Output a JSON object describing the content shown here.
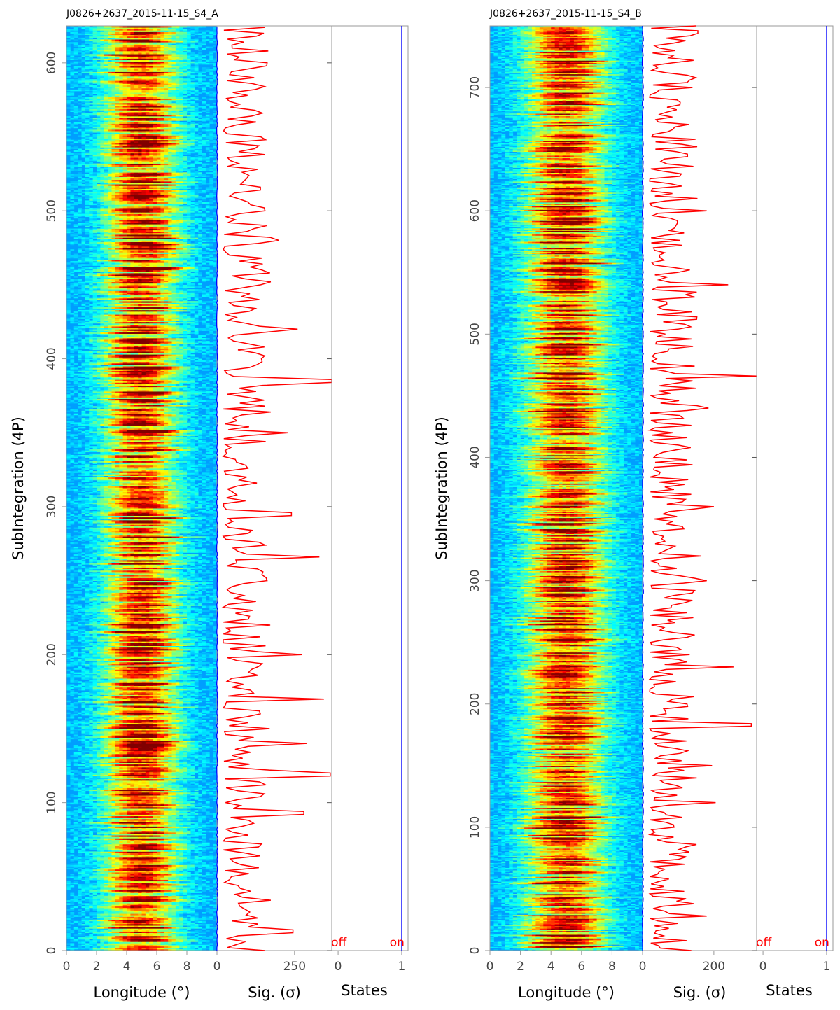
{
  "chart_data": [
    {
      "type": "heatmap",
      "title": "J0826+2637_2015-11-15_S4_A",
      "ylabel": "SubIntegration (4P)",
      "n_subints": 625,
      "ylim": [
        0,
        625
      ],
      "yticks": [
        0,
        100,
        200,
        300,
        400,
        500,
        600
      ],
      "panels": {
        "heatmap": {
          "xlabel": "Longitude (°)",
          "xlim": [
            0,
            10
          ],
          "xticks": [
            0,
            2,
            4,
            6,
            8
          ],
          "colormap": "jet",
          "pulse_center_deg": 5.0,
          "pulse_width_deg": 1.6
        },
        "significance": {
          "xlabel": "Sig. (σ)",
          "xlim": [
            0,
            370
          ],
          "xticks": [
            0,
            250
          ],
          "color": "#ff0000",
          "off_color": "#0000ff",
          "peaks": [
            {
              "y": 13,
              "value": 245
            },
            {
              "y": 93,
              "value": 280
            },
            {
              "y": 119,
              "value": 365
            },
            {
              "y": 140,
              "value": 290
            },
            {
              "y": 170,
              "value": 345
            },
            {
              "y": 200,
              "value": 275
            },
            {
              "y": 266,
              "value": 330
            },
            {
              "y": 295,
              "value": 240
            },
            {
              "y": 350,
              "value": 230
            },
            {
              "y": 385,
              "value": 370
            },
            {
              "y": 420,
              "value": 260
            },
            {
              "y": 480,
              "value": 200
            },
            {
              "y": 515,
              "value": 140
            },
            {
              "y": 590,
              "value": 120
            }
          ]
        },
        "states": {
          "xlabel": "States",
          "xlim": [
            -0.1,
            1.1
          ],
          "xticks": [
            0,
            1
          ],
          "off_label": "off",
          "on_label": "on",
          "state_value": 1,
          "color": "#0000ff"
        }
      }
    },
    {
      "type": "heatmap",
      "title": "J0826+2637_2015-11-15_S4_B",
      "ylabel": "SubIntegration (4P)",
      "n_subints": 750,
      "ylim": [
        0,
        750
      ],
      "yticks": [
        0,
        100,
        200,
        300,
        400,
        500,
        600,
        700
      ],
      "panels": {
        "heatmap": {
          "xlabel": "Longitude (°)",
          "xlim": [
            0,
            10
          ],
          "xticks": [
            0,
            2,
            4,
            6,
            8
          ],
          "colormap": "jet",
          "pulse_center_deg": 5.0,
          "pulse_width_deg": 1.7
        },
        "significance": {
          "xlabel": "Sig. (σ)",
          "xlim": [
            0,
            320
          ],
          "xticks": [
            0,
            200
          ],
          "color": "#ff0000",
          "off_color": "#0000ff",
          "peaks": [
            {
              "y": 28,
              "value": 180
            },
            {
              "y": 120,
              "value": 205
            },
            {
              "y": 150,
              "value": 195
            },
            {
              "y": 183,
              "value": 305
            },
            {
              "y": 230,
              "value": 255
            },
            {
              "y": 300,
              "value": 180
            },
            {
              "y": 320,
              "value": 165
            },
            {
              "y": 360,
              "value": 200
            },
            {
              "y": 440,
              "value": 185
            },
            {
              "y": 466,
              "value": 320
            },
            {
              "y": 540,
              "value": 240
            },
            {
              "y": 600,
              "value": 180
            },
            {
              "y": 700,
              "value": 140
            },
            {
              "y": 745,
              "value": 155
            }
          ]
        },
        "states": {
          "xlabel": "States",
          "xlim": [
            -0.1,
            1.1
          ],
          "xticks": [
            0,
            1
          ],
          "off_label": "off",
          "on_label": "on",
          "state_value": 1,
          "color": "#0000ff"
        }
      }
    }
  ]
}
